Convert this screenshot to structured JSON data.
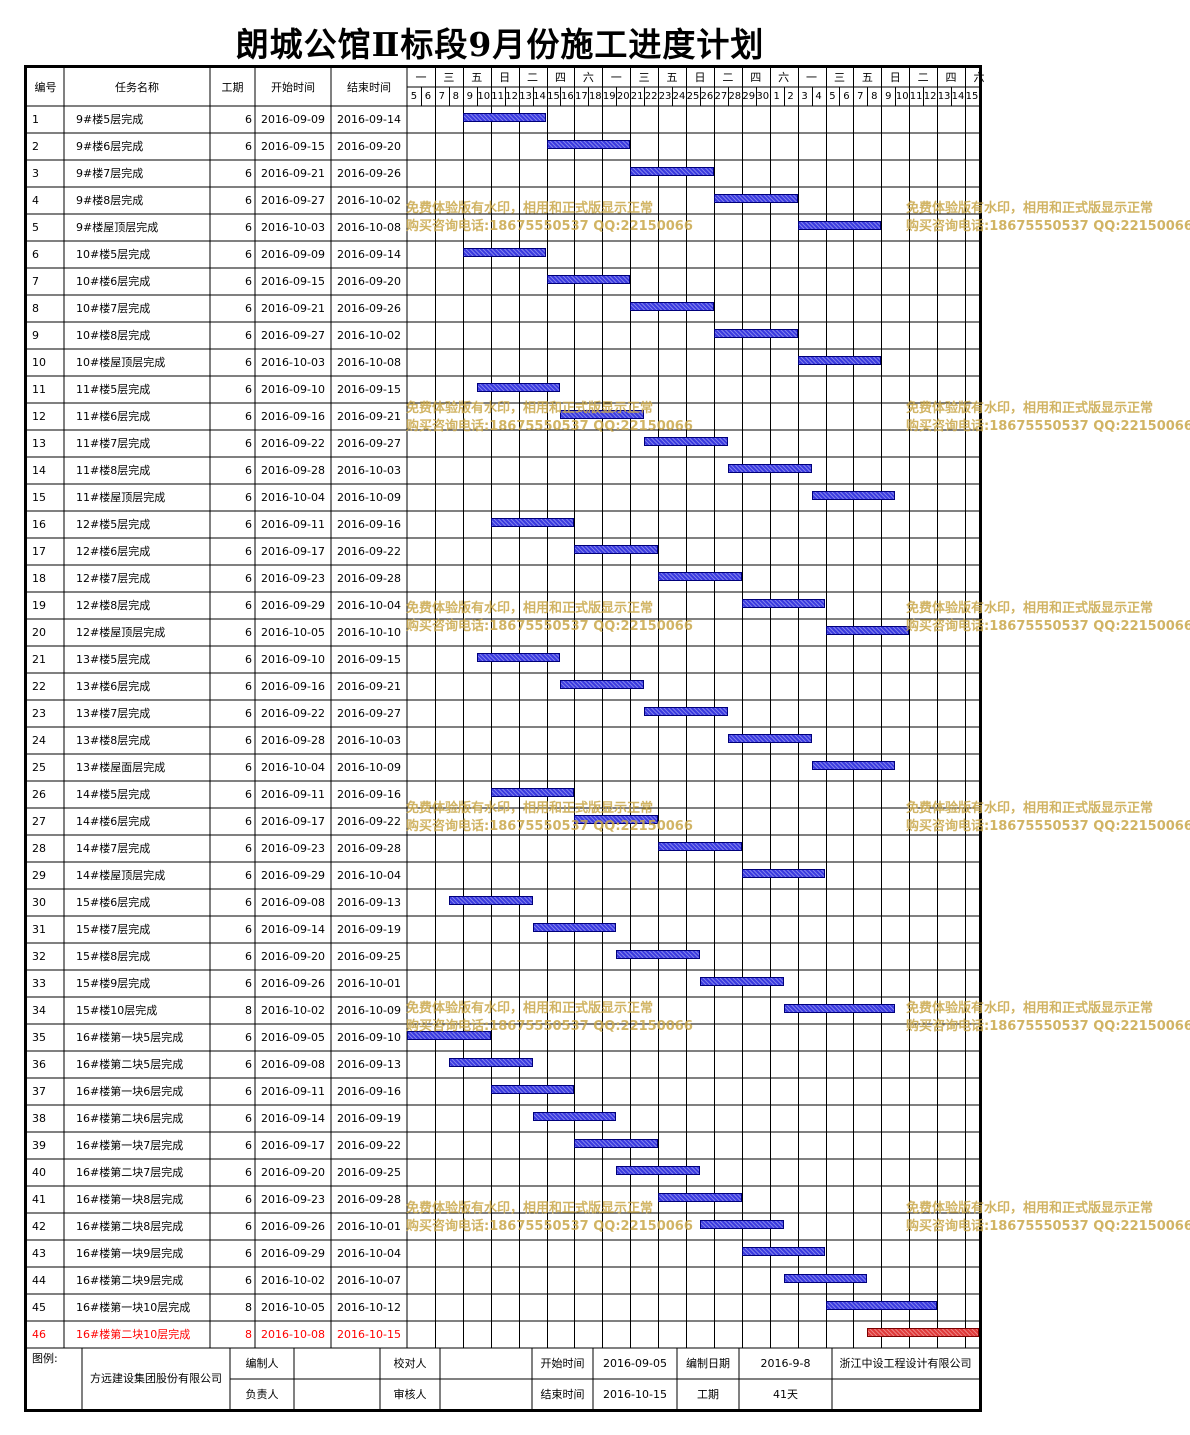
{
  "title": "朗城公馆Ⅱ标段9月份施工进度计划",
  "headers": {
    "no": "编号",
    "task": "任务名称",
    "dur": "工期",
    "start": "开始时间",
    "end": "结束时间"
  },
  "timeline": {
    "start_date": "2016-09-05",
    "days": [
      "5",
      "6",
      "7",
      "8",
      "9",
      "10",
      "11",
      "12",
      "13",
      "14",
      "15",
      "16",
      "17",
      "18",
      "19",
      "20",
      "21",
      "22",
      "23",
      "24",
      "25",
      "26",
      "27",
      "28",
      "29",
      "30",
      "1",
      "2",
      "3",
      "4",
      "5",
      "6",
      "7",
      "8",
      "9",
      "10",
      "11",
      "12",
      "13",
      "14",
      "15"
    ],
    "weekdays": [
      "一",
      "三",
      "五",
      "日",
      "二",
      "四",
      "六",
      "一",
      "三",
      "五",
      "日",
      "二",
      "四",
      "六",
      "一",
      "三",
      "五",
      "日",
      "二",
      "四",
      "六"
    ]
  },
  "tasks": [
    {
      "no": "1",
      "name": "9#楼5层完成",
      "dur": "6",
      "start": "2016-09-09",
      "end": "2016-09-14"
    },
    {
      "no": "2",
      "name": "9#楼6层完成",
      "dur": "6",
      "start": "2016-09-15",
      "end": "2016-09-20"
    },
    {
      "no": "3",
      "name": "9#楼7层完成",
      "dur": "6",
      "start": "2016-09-21",
      "end": "2016-09-26"
    },
    {
      "no": "4",
      "name": "9#楼8层完成",
      "dur": "6",
      "start": "2016-09-27",
      "end": "2016-10-02"
    },
    {
      "no": "5",
      "name": "9#楼屋顶层完成",
      "dur": "6",
      "start": "2016-10-03",
      "end": "2016-10-08"
    },
    {
      "no": "6",
      "name": "10#楼5层完成",
      "dur": "6",
      "start": "2016-09-09",
      "end": "2016-09-14"
    },
    {
      "no": "7",
      "name": "10#楼6层完成",
      "dur": "6",
      "start": "2016-09-15",
      "end": "2016-09-20"
    },
    {
      "no": "8",
      "name": "10#楼7层完成",
      "dur": "6",
      "start": "2016-09-21",
      "end": "2016-09-26"
    },
    {
      "no": "9",
      "name": "10#楼8层完成",
      "dur": "6",
      "start": "2016-09-27",
      "end": "2016-10-02"
    },
    {
      "no": "10",
      "name": "10#楼屋顶层完成",
      "dur": "6",
      "start": "2016-10-03",
      "end": "2016-10-08"
    },
    {
      "no": "11",
      "name": "11#楼5层完成",
      "dur": "6",
      "start": "2016-09-10",
      "end": "2016-09-15"
    },
    {
      "no": "12",
      "name": "11#楼6层完成",
      "dur": "6",
      "start": "2016-09-16",
      "end": "2016-09-21"
    },
    {
      "no": "13",
      "name": "11#楼7层完成",
      "dur": "6",
      "start": "2016-09-22",
      "end": "2016-09-27"
    },
    {
      "no": "14",
      "name": "11#楼8层完成",
      "dur": "6",
      "start": "2016-09-28",
      "end": "2016-10-03"
    },
    {
      "no": "15",
      "name": "11#楼屋顶层完成",
      "dur": "6",
      "start": "2016-10-04",
      "end": "2016-10-09"
    },
    {
      "no": "16",
      "name": "12#楼5层完成",
      "dur": "6",
      "start": "2016-09-11",
      "end": "2016-09-16"
    },
    {
      "no": "17",
      "name": "12#楼6层完成",
      "dur": "6",
      "start": "2016-09-17",
      "end": "2016-09-22"
    },
    {
      "no": "18",
      "name": "12#楼7层完成",
      "dur": "6",
      "start": "2016-09-23",
      "end": "2016-09-28"
    },
    {
      "no": "19",
      "name": "12#楼8层完成",
      "dur": "6",
      "start": "2016-09-29",
      "end": "2016-10-04"
    },
    {
      "no": "20",
      "name": "12#楼屋顶层完成",
      "dur": "6",
      "start": "2016-10-05",
      "end": "2016-10-10"
    },
    {
      "no": "21",
      "name": "13#楼5层完成",
      "dur": "6",
      "start": "2016-09-10",
      "end": "2016-09-15"
    },
    {
      "no": "22",
      "name": "13#楼6层完成",
      "dur": "6",
      "start": "2016-09-16",
      "end": "2016-09-21"
    },
    {
      "no": "23",
      "name": "13#楼7层完成",
      "dur": "6",
      "start": "2016-09-22",
      "end": "2016-09-27"
    },
    {
      "no": "24",
      "name": "13#楼8层完成",
      "dur": "6",
      "start": "2016-09-28",
      "end": "2016-10-03"
    },
    {
      "no": "25",
      "name": "13#楼屋面层完成",
      "dur": "6",
      "start": "2016-10-04",
      "end": "2016-10-09"
    },
    {
      "no": "26",
      "name": "14#楼5层完成",
      "dur": "6",
      "start": "2016-09-11",
      "end": "2016-09-16"
    },
    {
      "no": "27",
      "name": "14#楼6层完成",
      "dur": "6",
      "start": "2016-09-17",
      "end": "2016-09-22"
    },
    {
      "no": "28",
      "name": "14#楼7层完成",
      "dur": "6",
      "start": "2016-09-23",
      "end": "2016-09-28"
    },
    {
      "no": "29",
      "name": "14#楼屋顶层完成",
      "dur": "6",
      "start": "2016-09-29",
      "end": "2016-10-04"
    },
    {
      "no": "30",
      "name": "15#楼6层完成",
      "dur": "6",
      "start": "2016-09-08",
      "end": "2016-09-13"
    },
    {
      "no": "31",
      "name": "15#楼7层完成",
      "dur": "6",
      "start": "2016-09-14",
      "end": "2016-09-19"
    },
    {
      "no": "32",
      "name": "15#楼8层完成",
      "dur": "6",
      "start": "2016-09-20",
      "end": "2016-09-25"
    },
    {
      "no": "33",
      "name": "15#楼9层完成",
      "dur": "6",
      "start": "2016-09-26",
      "end": "2016-10-01"
    },
    {
      "no": "34",
      "name": "15#楼10层完成",
      "dur": "8",
      "start": "2016-10-02",
      "end": "2016-10-09"
    },
    {
      "no": "35",
      "name": "16#楼第一块5层完成",
      "dur": "6",
      "start": "2016-09-05",
      "end": "2016-09-10"
    },
    {
      "no": "36",
      "name": "16#楼第二块5层完成",
      "dur": "6",
      "start": "2016-09-08",
      "end": "2016-09-13"
    },
    {
      "no": "37",
      "name": "16#楼第一块6层完成",
      "dur": "6",
      "start": "2016-09-11",
      "end": "2016-09-16"
    },
    {
      "no": "38",
      "name": "16#楼第二块6层完成",
      "dur": "6",
      "start": "2016-09-14",
      "end": "2016-09-19"
    },
    {
      "no": "39",
      "name": "16#楼第一块7层完成",
      "dur": "6",
      "start": "2016-09-17",
      "end": "2016-09-22"
    },
    {
      "no": "40",
      "name": "16#楼第二块7层完成",
      "dur": "6",
      "start": "2016-09-20",
      "end": "2016-09-25"
    },
    {
      "no": "41",
      "name": "16#楼第一块8层完成",
      "dur": "6",
      "start": "2016-09-23",
      "end": "2016-09-28"
    },
    {
      "no": "42",
      "name": "16#楼第二块8层完成",
      "dur": "6",
      "start": "2016-09-26",
      "end": "2016-10-01"
    },
    {
      "no": "43",
      "name": "16#楼第一块9层完成",
      "dur": "6",
      "start": "2016-09-29",
      "end": "2016-10-04"
    },
    {
      "no": "44",
      "name": "16#楼第二块9层完成",
      "dur": "6",
      "start": "2016-10-02",
      "end": "2016-10-07"
    },
    {
      "no": "45",
      "name": "16#楼第一块10层完成",
      "dur": "8",
      "start": "2016-10-05",
      "end": "2016-10-12"
    },
    {
      "no": "46",
      "name": "16#楼第二块10层完成",
      "dur": "8",
      "start": "2016-10-08",
      "end": "2016-10-15",
      "critical": true
    }
  ],
  "footer": {
    "legend_label": "图例:",
    "company": "方远建设集团股份有限公司",
    "compiler_label": "编制人",
    "checker_label": "校对人",
    "responsible_label": "负责人",
    "reviewer_label": "审核人",
    "start_label": "开始时间",
    "start_value": "2016-09-05",
    "end_label": "结束时间",
    "end_value": "2016-10-15",
    "date_label": "编制日期",
    "date_value": "2016-9-8",
    "duration_label": "工期",
    "duration_value": "41天",
    "designer": "浙江中设工程设计有限公司"
  },
  "watermark": {
    "line1": "免费体验版有水印，相用和正式版显示正常",
    "line2": "购买咨询电话:18675550537 QQ:22150066"
  },
  "colors": {
    "bar": "#3a3ae0",
    "critical_bar": "#e03a3a",
    "critical_text": "#ff0000",
    "watermark": "#c9a74a"
  }
}
